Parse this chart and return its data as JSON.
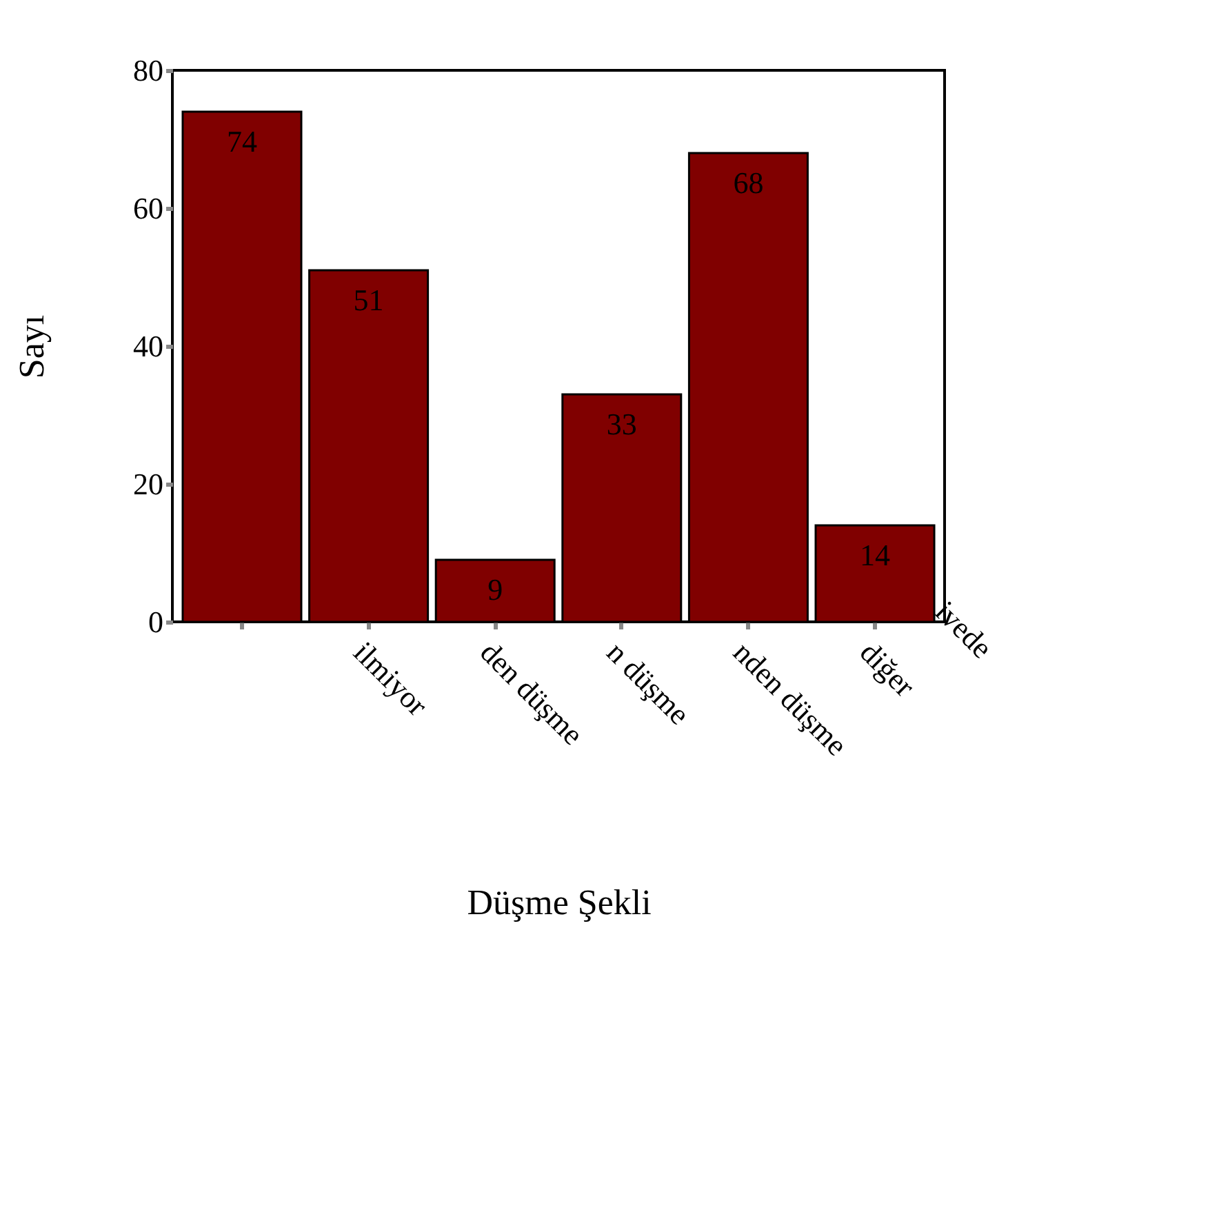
{
  "chart_data": {
    "type": "bar",
    "xlabel": "Düşme Şekli",
    "ylabel": "Sayı",
    "categories": [
      null,
      "ilmiyor",
      "den düşme",
      "n düşme",
      "nden düşme",
      "diğer"
    ],
    "values": [
      74,
      51,
      9,
      33,
      68,
      14
    ],
    "color": "#800000",
    "ylim": [
      0,
      80
    ],
    "yticks": [
      0,
      20,
      40,
      60,
      80
    ],
    "grid": false,
    "data_labels": true,
    "annotations": [
      "ivede"
    ]
  }
}
